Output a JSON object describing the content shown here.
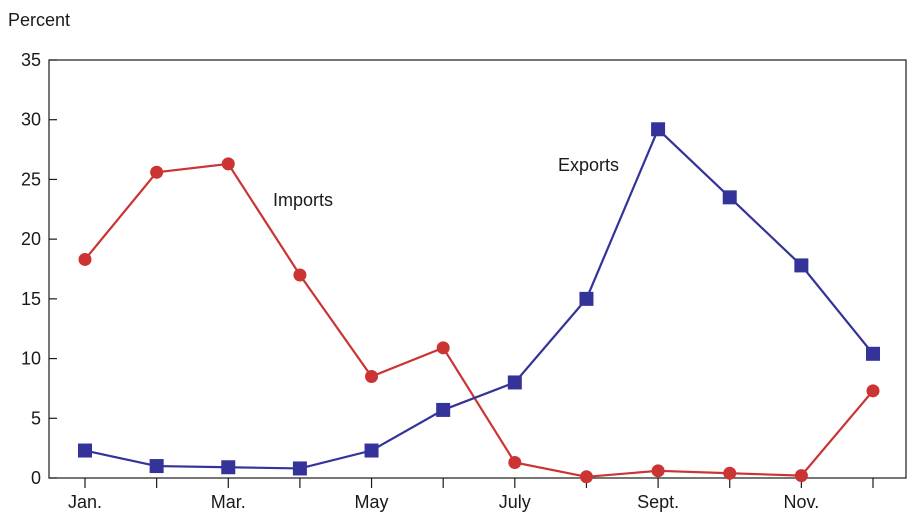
{
  "chart_data": {
    "type": "line",
    "ylabel": "Percent",
    "ylim": [
      0,
      35
    ],
    "yticks": [
      0,
      5,
      10,
      15,
      20,
      25,
      30,
      35
    ],
    "x": [
      1,
      2,
      3,
      4,
      5,
      6,
      7,
      8,
      9,
      10,
      11,
      12
    ],
    "xtick_labels": [
      {
        "x": 1,
        "label": "Jan."
      },
      {
        "x": 3,
        "label": "Mar."
      },
      {
        "x": 5,
        "label": "May"
      },
      {
        "x": 7,
        "label": "July"
      },
      {
        "x": 9,
        "label": "Sept."
      },
      {
        "x": 11,
        "label": "Nov."
      }
    ],
    "grid": false,
    "series": [
      {
        "name": "Imports",
        "color": "#cc3333",
        "marker": "circle",
        "values": [
          18.3,
          25.6,
          26.3,
          17.0,
          8.5,
          10.9,
          1.3,
          0.1,
          0.6,
          0.4,
          0.2,
          7.3
        ]
      },
      {
        "name": "Exports",
        "color": "#333399",
        "marker": "square",
        "values": [
          2.3,
          1.0,
          0.9,
          0.8,
          2.3,
          5.7,
          8.0,
          15.0,
          29.2,
          23.5,
          17.8,
          10.4
        ]
      }
    ],
    "annotations": [
      {
        "text": "Imports",
        "series": "Imports"
      },
      {
        "text": "Exports",
        "series": "Exports"
      }
    ]
  }
}
